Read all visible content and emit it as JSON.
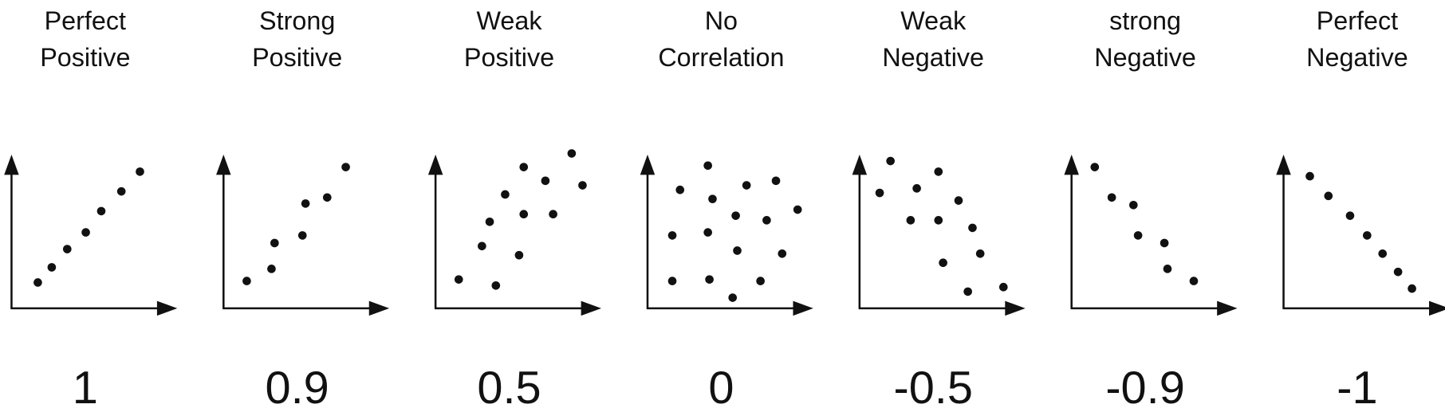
{
  "colors": {
    "ink": "#111111",
    "background": "#ffffff"
  },
  "chart_data": [
    {
      "type": "scatter",
      "title": [
        "Perfect",
        "Positive"
      ],
      "coefficient": "1",
      "xlim": [
        0,
        10
      ],
      "ylim": [
        0,
        10
      ],
      "points": [
        [
          1.7,
          1.7
        ],
        [
          2.6,
          2.7
        ],
        [
          3.6,
          3.9
        ],
        [
          4.8,
          5.0
        ],
        [
          5.8,
          6.4
        ],
        [
          7.1,
          7.7
        ],
        [
          8.3,
          9.0
        ]
      ]
    },
    {
      "type": "scatter",
      "title": [
        "Strong",
        "Positive"
      ],
      "coefficient": "0.9",
      "xlim": [
        0,
        10
      ],
      "ylim": [
        0,
        10
      ],
      "points": [
        [
          1.5,
          1.8
        ],
        [
          3.1,
          2.6
        ],
        [
          3.3,
          4.3
        ],
        [
          5.1,
          4.8
        ],
        [
          5.3,
          6.9
        ],
        [
          6.7,
          7.3
        ],
        [
          7.9,
          9.3
        ]
      ]
    },
    {
      "type": "scatter",
      "title": [
        "Weak",
        "Positive"
      ],
      "coefficient": "0.5",
      "xlim": [
        0,
        10
      ],
      "ylim": [
        0,
        10
      ],
      "points": [
        [
          1.5,
          1.9
        ],
        [
          3.9,
          1.5
        ],
        [
          3.0,
          4.1
        ],
        [
          3.5,
          5.7
        ],
        [
          4.5,
          7.5
        ],
        [
          5.7,
          9.3
        ],
        [
          5.4,
          3.5
        ],
        [
          5.7,
          6.2
        ],
        [
          7.1,
          8.4
        ],
        [
          7.6,
          6.2
        ],
        [
          8.8,
          10.2
        ],
        [
          9.5,
          8.1
        ]
      ]
    },
    {
      "type": "scatter",
      "title": [
        "No",
        "Correlation"
      ],
      "coefficient": "0",
      "xlim": [
        0,
        10
      ],
      "ylim": [
        0,
        10
      ],
      "points": [
        [
          2.1,
          7.8
        ],
        [
          3.9,
          9.4
        ],
        [
          4.2,
          7.2
        ],
        [
          6.4,
          8.1
        ],
        [
          8.3,
          8.4
        ],
        [
          5.7,
          6.1
        ],
        [
          7.7,
          5.8
        ],
        [
          9.7,
          6.5
        ],
        [
          1.6,
          4.8
        ],
        [
          3.9,
          5.0
        ],
        [
          5.8,
          3.8
        ],
        [
          8.7,
          3.6
        ],
        [
          1.6,
          1.8
        ],
        [
          4.0,
          1.9
        ],
        [
          7.3,
          1.8
        ],
        [
          5.5,
          0.7
        ]
      ]
    },
    {
      "type": "scatter",
      "title": [
        "Weak",
        "Negative"
      ],
      "coefficient": "-0.5",
      "xlim": [
        0,
        10
      ],
      "ylim": [
        0,
        10
      ],
      "points": [
        [
          2.0,
          9.7
        ],
        [
          1.3,
          7.6
        ],
        [
          3.7,
          7.9
        ],
        [
          5.1,
          9.0
        ],
        [
          3.3,
          5.8
        ],
        [
          5.1,
          5.8
        ],
        [
          6.4,
          7.1
        ],
        [
          7.3,
          5.3
        ],
        [
          7.8,
          3.6
        ],
        [
          5.4,
          3.0
        ],
        [
          7.0,
          1.1
        ],
        [
          9.3,
          1.4
        ]
      ]
    },
    {
      "type": "scatter",
      "title": [
        "strong",
        "Negative"
      ],
      "coefficient": "-0.9",
      "xlim": [
        0,
        10
      ],
      "ylim": [
        0,
        10
      ],
      "points": [
        [
          1.5,
          9.3
        ],
        [
          2.6,
          7.3
        ],
        [
          4.0,
          6.8
        ],
        [
          4.3,
          4.8
        ],
        [
          6.0,
          4.3
        ],
        [
          6.2,
          2.6
        ],
        [
          7.9,
          1.8
        ]
      ]
    },
    {
      "type": "scatter",
      "title": [
        "Perfect",
        "Negative"
      ],
      "coefficient": "-1",
      "xlim": [
        0,
        10
      ],
      "ylim": [
        0,
        10
      ],
      "points": [
        [
          1.7,
          8.7
        ],
        [
          2.9,
          7.4
        ],
        [
          4.3,
          6.1
        ],
        [
          5.4,
          4.8
        ],
        [
          6.4,
          3.6
        ],
        [
          7.4,
          2.4
        ],
        [
          8.3,
          1.3
        ]
      ]
    }
  ]
}
